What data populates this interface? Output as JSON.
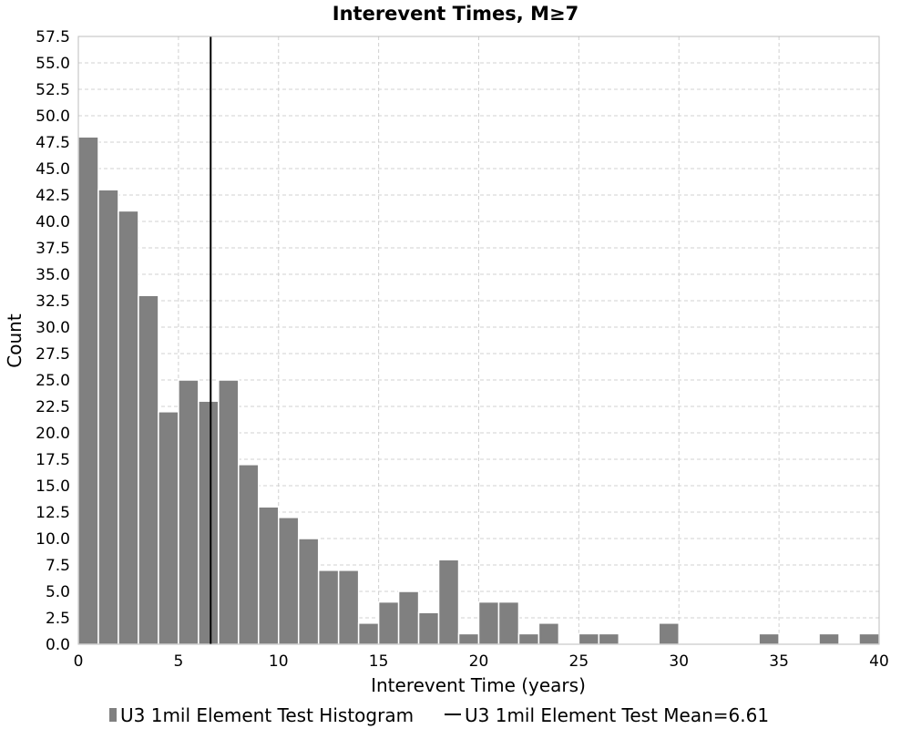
{
  "chart_data": {
    "type": "bar",
    "title": "Interevent Times, M≥7",
    "xlabel": "Interevent Time (years)",
    "ylabel": "Count",
    "xlim": [
      0,
      40
    ],
    "ylim": [
      0,
      57.5
    ],
    "xticks": [
      "0",
      "5",
      "10",
      "15",
      "20",
      "25",
      "30",
      "35",
      "40"
    ],
    "yticks": [
      "0.0",
      "2.5",
      "5.0",
      "7.5",
      "10.0",
      "12.5",
      "15.0",
      "17.5",
      "20.0",
      "22.5",
      "25.0",
      "27.5",
      "30.0",
      "32.5",
      "35.0",
      "37.5",
      "40.0",
      "42.5",
      "45.0",
      "47.5",
      "50.0",
      "52.5",
      "55.0",
      "57.5"
    ],
    "bin_width": 1,
    "bin_starts": [
      0,
      1,
      2,
      3,
      4,
      5,
      6,
      7,
      8,
      9,
      10,
      11,
      12,
      13,
      14,
      15,
      16,
      17,
      18,
      19,
      20,
      21,
      22,
      23,
      25,
      26,
      29,
      34,
      37,
      39
    ],
    "values": [
      48,
      43,
      41,
      33,
      22,
      25,
      23,
      25,
      17,
      13,
      12,
      10,
      7,
      7,
      2,
      4,
      5,
      3,
      8,
      1,
      4,
      4,
      1,
      2,
      1,
      1,
      2,
      1,
      1,
      1
    ],
    "grid": true,
    "series": [
      {
        "name": "U3 1mil Element Test Histogram",
        "color": "#808080"
      },
      {
        "name": "U3 1mil Element Test Mean=6.61",
        "color": "#000000"
      }
    ],
    "mean_line": {
      "x": 6.61
    },
    "legend_position": "bottom"
  }
}
